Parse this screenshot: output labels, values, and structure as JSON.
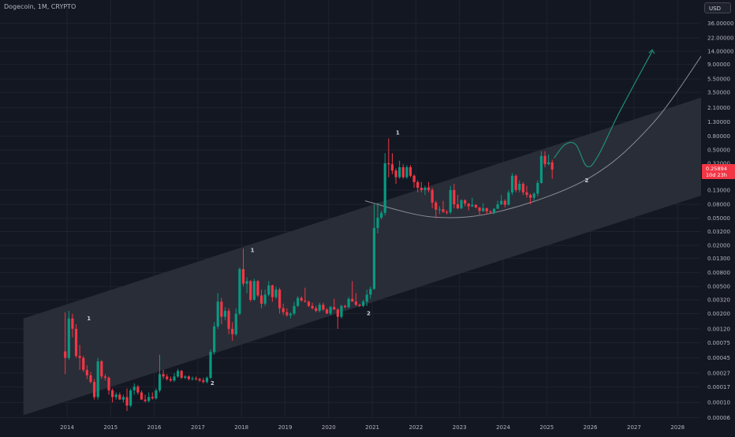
{
  "header": {
    "title": "Dogecoin, 1M, CRYPTO",
    "currency_button": "USD"
  },
  "colors": {
    "background": "#131722",
    "grid": "#1f2330",
    "channel_fill": "#2a2e39",
    "bull": "#089981",
    "bear": "#f23645",
    "curve": "#8a8d96",
    "projection": "#1f8f76",
    "price_tag": "#f23645",
    "text": "#b2b5be"
  },
  "price_tag": {
    "price": "0.25894",
    "countdown": "10d 23h"
  },
  "chart_data": {
    "type": "candlestick",
    "title": "Dogecoin, 1M, CRYPTO",
    "xlabel": "",
    "ylabel": "USD",
    "yscale": "log",
    "y_ticks": [
      "36.00000",
      "22.00000",
      "14.00000",
      "9.00000",
      "5.50000",
      "3.50000",
      "2.10000",
      "1.30000",
      "0.80000",
      "0.50000",
      "0.32000",
      "0.13000",
      "0.08000",
      "0.05000",
      "0.03200",
      "0.02000",
      "0.01300",
      "0.00800",
      "0.00500",
      "0.00320",
      "0.00200",
      "0.00120",
      "0.00075",
      "0.00045",
      "0.00027",
      "0.00017",
      "0.00010",
      "0.00006"
    ],
    "x_ticks": [
      "2014",
      "2015",
      "2016",
      "2017",
      "2018",
      "2019",
      "2020",
      "2021",
      "2022",
      "2023",
      "2024",
      "2025",
      "2026",
      "2027",
      "2028"
    ],
    "annotations": [
      {
        "label": "1",
        "x": "2014-07",
        "price": 0.0016
      },
      {
        "label": "2",
        "x": "2017-05",
        "price": 0.00018
      },
      {
        "label": "1",
        "x": "2018-04",
        "price": 0.016
      },
      {
        "label": "2",
        "x": "2020-12",
        "price": 0.0019
      },
      {
        "label": "1",
        "x": "2021-08",
        "price": 0.85
      },
      {
        "label": "2",
        "x": "2025-12",
        "price": 0.17
      }
    ],
    "channel": {
      "upper": [
        {
          "x": "2013-01",
          "price": 0.0017
        },
        {
          "x": "2028-08",
          "price": 3.0
        }
      ],
      "lower": [
        {
          "x": "2013-01",
          "price": 6.5e-05
        },
        {
          "x": "2028-08",
          "price": 0.11
        }
      ]
    },
    "candles": [
      {
        "t": "2013-12",
        "o": 0.00056,
        "h": 0.0021,
        "l": 0.00026,
        "c": 0.00045
      },
      {
        "t": "2014-01",
        "o": 0.00045,
        "h": 0.0022,
        "l": 0.00042,
        "c": 0.0017
      },
      {
        "t": "2014-02",
        "o": 0.0017,
        "h": 0.002,
        "l": 0.0009,
        "c": 0.0012
      },
      {
        "t": "2014-03",
        "o": 0.0012,
        "h": 0.0014,
        "l": 0.00045,
        "c": 0.00048
      },
      {
        "t": "2014-04",
        "o": 0.00048,
        "h": 0.0007,
        "l": 0.0003,
        "c": 0.00045
      },
      {
        "t": "2014-05",
        "o": 0.00045,
        "h": 0.00048,
        "l": 0.00028,
        "c": 0.0003
      },
      {
        "t": "2014-06",
        "o": 0.0003,
        "h": 0.00035,
        "l": 0.00022,
        "c": 0.00025
      },
      {
        "t": "2014-07",
        "o": 0.00025,
        "h": 0.00028,
        "l": 0.00019,
        "c": 0.0002
      },
      {
        "t": "2014-08",
        "o": 0.0002,
        "h": 0.00022,
        "l": 0.00011,
        "c": 0.00012
      },
      {
        "t": "2014-09",
        "o": 0.00012,
        "h": 0.00045,
        "l": 0.00011,
        "c": 0.0004
      },
      {
        "t": "2014-10",
        "o": 0.0004,
        "h": 0.00042,
        "l": 0.00022,
        "c": 0.00024
      },
      {
        "t": "2014-11",
        "o": 0.00024,
        "h": 0.00026,
        "l": 0.00021,
        "c": 0.00023
      },
      {
        "t": "2014-12",
        "o": 0.00023,
        "h": 0.00024,
        "l": 0.00013,
        "c": 0.00015
      },
      {
        "t": "2015-01",
        "o": 0.00015,
        "h": 0.00016,
        "l": 0.0001,
        "c": 0.00012
      },
      {
        "t": "2015-02",
        "o": 0.00012,
        "h": 0.00014,
        "l": 0.00011,
        "c": 0.00013
      },
      {
        "t": "2015-03",
        "o": 0.00013,
        "h": 0.00014,
        "l": 0.00011,
        "c": 0.00011
      },
      {
        "t": "2015-04",
        "o": 0.00011,
        "h": 0.00013,
        "l": 0.0001,
        "c": 0.00012
      },
      {
        "t": "2015-05",
        "o": 0.00012,
        "h": 0.00016,
        "l": 7.5e-05,
        "c": 9e-05
      },
      {
        "t": "2015-06",
        "o": 9e-05,
        "h": 0.00016,
        "l": 8.5e-05,
        "c": 0.00015
      },
      {
        "t": "2015-07",
        "o": 0.00015,
        "h": 0.00019,
        "l": 0.00013,
        "c": 0.00017
      },
      {
        "t": "2015-08",
        "o": 0.00017,
        "h": 0.00018,
        "l": 0.00013,
        "c": 0.00014
      },
      {
        "t": "2015-09",
        "o": 0.00014,
        "h": 0.00015,
        "l": 0.00011,
        "c": 0.00011
      },
      {
        "t": "2015-10",
        "o": 0.00011,
        "h": 0.00013,
        "l": 0.0001,
        "c": 0.000105
      },
      {
        "t": "2015-11",
        "o": 0.000105,
        "h": 0.00014,
        "l": 0.0001,
        "c": 0.00012
      },
      {
        "t": "2015-12",
        "o": 0.00012,
        "h": 0.00014,
        "l": 0.00011,
        "c": 0.000115
      },
      {
        "t": "2016-01",
        "o": 0.000115,
        "h": 0.00016,
        "l": 0.00011,
        "c": 0.00015
      },
      {
        "t": "2016-02",
        "o": 0.00015,
        "h": 0.0005,
        "l": 0.00014,
        "c": 0.00026
      },
      {
        "t": "2016-03",
        "o": 0.00026,
        "h": 0.0003,
        "l": 0.00022,
        "c": 0.00024
      },
      {
        "t": "2016-04",
        "o": 0.00024,
        "h": 0.00026,
        "l": 0.00021,
        "c": 0.00022
      },
      {
        "t": "2016-05",
        "o": 0.00022,
        "h": 0.00024,
        "l": 0.0002,
        "c": 0.00021
      },
      {
        "t": "2016-06",
        "o": 0.00021,
        "h": 0.00027,
        "l": 0.0002,
        "c": 0.00024
      },
      {
        "t": "2016-07",
        "o": 0.00024,
        "h": 0.00031,
        "l": 0.00023,
        "c": 0.00029
      },
      {
        "t": "2016-08",
        "o": 0.00029,
        "h": 0.0003,
        "l": 0.00022,
        "c": 0.00023
      },
      {
        "t": "2016-09",
        "o": 0.00023,
        "h": 0.00025,
        "l": 0.00022,
        "c": 0.00024
      },
      {
        "t": "2016-10",
        "o": 0.00024,
        "h": 0.00025,
        "l": 0.00021,
        "c": 0.00022
      },
      {
        "t": "2016-11",
        "o": 0.00022,
        "h": 0.00024,
        "l": 0.00021,
        "c": 0.000225
      },
      {
        "t": "2016-12",
        "o": 0.000225,
        "h": 0.00024,
        "l": 0.00021,
        "c": 0.00022
      },
      {
        "t": "2017-01",
        "o": 0.00022,
        "h": 0.00023,
        "l": 0.0002,
        "c": 0.00021
      },
      {
        "t": "2017-02",
        "o": 0.00021,
        "h": 0.00023,
        "l": 0.00019,
        "c": 0.0002
      },
      {
        "t": "2017-03",
        "o": 0.0002,
        "h": 0.00024,
        "l": 0.00019,
        "c": 0.00023
      },
      {
        "t": "2017-04",
        "o": 0.00023,
        "h": 0.0006,
        "l": 0.00022,
        "c": 0.00055
      },
      {
        "t": "2017-05",
        "o": 0.00055,
        "h": 0.0015,
        "l": 0.0005,
        "c": 0.0013
      },
      {
        "t": "2017-06",
        "o": 0.0013,
        "h": 0.004,
        "l": 0.0012,
        "c": 0.003
      },
      {
        "t": "2017-07",
        "o": 0.003,
        "h": 0.0034,
        "l": 0.0014,
        "c": 0.0018
      },
      {
        "t": "2017-08",
        "o": 0.0018,
        "h": 0.0025,
        "l": 0.0016,
        "c": 0.0022
      },
      {
        "t": "2017-09",
        "o": 0.0022,
        "h": 0.0024,
        "l": 0.001,
        "c": 0.0012
      },
      {
        "t": "2017-10",
        "o": 0.0012,
        "h": 0.0015,
        "l": 0.0008,
        "c": 0.001
      },
      {
        "t": "2017-11",
        "o": 0.001,
        "h": 0.0024,
        "l": 0.00095,
        "c": 0.002
      },
      {
        "t": "2017-12",
        "o": 0.002,
        "h": 0.0095,
        "l": 0.0019,
        "c": 0.009
      },
      {
        "t": "2018-01",
        "o": 0.009,
        "h": 0.018,
        "l": 0.005,
        "c": 0.0055
      },
      {
        "t": "2018-02",
        "o": 0.0055,
        "h": 0.0068,
        "l": 0.004,
        "c": 0.006
      },
      {
        "t": "2018-03",
        "o": 0.006,
        "h": 0.0062,
        "l": 0.003,
        "c": 0.0032
      },
      {
        "t": "2018-04",
        "o": 0.0032,
        "h": 0.0065,
        "l": 0.0031,
        "c": 0.006
      },
      {
        "t": "2018-05",
        "o": 0.006,
        "h": 0.0062,
        "l": 0.0035,
        "c": 0.0037
      },
      {
        "t": "2018-06",
        "o": 0.0037,
        "h": 0.0045,
        "l": 0.0024,
        "c": 0.0028
      },
      {
        "t": "2018-07",
        "o": 0.0028,
        "h": 0.0045,
        "l": 0.0026,
        "c": 0.0038
      },
      {
        "t": "2018-08",
        "o": 0.0038,
        "h": 0.006,
        "l": 0.0036,
        "c": 0.0052
      },
      {
        "t": "2018-09",
        "o": 0.0052,
        "h": 0.0053,
        "l": 0.003,
        "c": 0.0035
      },
      {
        "t": "2018-10",
        "o": 0.0035,
        "h": 0.005,
        "l": 0.0033,
        "c": 0.0045
      },
      {
        "t": "2018-11",
        "o": 0.0045,
        "h": 0.0048,
        "l": 0.002,
        "c": 0.0024
      },
      {
        "t": "2018-12",
        "o": 0.0024,
        "h": 0.0028,
        "l": 0.0019,
        "c": 0.0021
      },
      {
        "t": "2019-01",
        "o": 0.0021,
        "h": 0.0024,
        "l": 0.0018,
        "c": 0.0019
      },
      {
        "t": "2019-02",
        "o": 0.0019,
        "h": 0.0021,
        "l": 0.0017,
        "c": 0.002
      },
      {
        "t": "2019-03",
        "o": 0.002,
        "h": 0.003,
        "l": 0.0019,
        "c": 0.0026
      },
      {
        "t": "2019-04",
        "o": 0.0026,
        "h": 0.0036,
        "l": 0.0025,
        "c": 0.0034
      },
      {
        "t": "2019-05",
        "o": 0.0034,
        "h": 0.0036,
        "l": 0.003,
        "c": 0.0031
      },
      {
        "t": "2019-06",
        "o": 0.0031,
        "h": 0.0048,
        "l": 0.0029,
        "c": 0.003
      },
      {
        "t": "2019-07",
        "o": 0.003,
        "h": 0.0031,
        "l": 0.0025,
        "c": 0.0026
      },
      {
        "t": "2019-08",
        "o": 0.0026,
        "h": 0.0029,
        "l": 0.0023,
        "c": 0.0024
      },
      {
        "t": "2019-09",
        "o": 0.0024,
        "h": 0.0026,
        "l": 0.0021,
        "c": 0.0022
      },
      {
        "t": "2019-10",
        "o": 0.0022,
        "h": 0.0029,
        "l": 0.0021,
        "c": 0.0027
      },
      {
        "t": "2019-11",
        "o": 0.0027,
        "h": 0.0029,
        "l": 0.0022,
        "c": 0.0023
      },
      {
        "t": "2019-12",
        "o": 0.0023,
        "h": 0.0024,
        "l": 0.002,
        "c": 0.002
      },
      {
        "t": "2020-01",
        "o": 0.002,
        "h": 0.0026,
        "l": 0.0019,
        "c": 0.0025
      },
      {
        "t": "2020-02",
        "o": 0.0025,
        "h": 0.0033,
        "l": 0.0024,
        "c": 0.0023
      },
      {
        "t": "2020-03",
        "o": 0.0023,
        "h": 0.0024,
        "l": 0.0012,
        "c": 0.0018
      },
      {
        "t": "2020-04",
        "o": 0.0018,
        "h": 0.0027,
        "l": 0.0017,
        "c": 0.0026
      },
      {
        "t": "2020-05",
        "o": 0.0026,
        "h": 0.0027,
        "l": 0.0024,
        "c": 0.0025
      },
      {
        "t": "2020-06",
        "o": 0.0025,
        "h": 0.0035,
        "l": 0.0024,
        "c": 0.0033
      },
      {
        "t": "2020-07",
        "o": 0.0033,
        "h": 0.006,
        "l": 0.0031,
        "c": 0.003
      },
      {
        "t": "2020-08",
        "o": 0.003,
        "h": 0.004,
        "l": 0.0026,
        "c": 0.0027
      },
      {
        "t": "2020-09",
        "o": 0.0027,
        "h": 0.0028,
        "l": 0.0025,
        "c": 0.0026
      },
      {
        "t": "2020-10",
        "o": 0.0026,
        "h": 0.0032,
        "l": 0.0025,
        "c": 0.003
      },
      {
        "t": "2020-11",
        "o": 0.003,
        "h": 0.0045,
        "l": 0.0026,
        "c": 0.0038
      },
      {
        "t": "2020-12",
        "o": 0.0038,
        "h": 0.005,
        "l": 0.0033,
        "c": 0.0046
      },
      {
        "t": "2021-01",
        "o": 0.0046,
        "h": 0.08,
        "l": 0.0045,
        "c": 0.036
      },
      {
        "t": "2021-02",
        "o": 0.036,
        "h": 0.085,
        "l": 0.03,
        "c": 0.051
      },
      {
        "t": "2021-03",
        "o": 0.051,
        "h": 0.065,
        "l": 0.048,
        "c": 0.06
      },
      {
        "t": "2021-04",
        "o": 0.06,
        "h": 0.45,
        "l": 0.055,
        "c": 0.32
      },
      {
        "t": "2021-05",
        "o": 0.32,
        "h": 0.74,
        "l": 0.2,
        "c": 0.31
      },
      {
        "t": "2021-06",
        "o": 0.31,
        "h": 0.45,
        "l": 0.22,
        "c": 0.25
      },
      {
        "t": "2021-07",
        "o": 0.25,
        "h": 0.27,
        "l": 0.16,
        "c": 0.2
      },
      {
        "t": "2021-08",
        "o": 0.2,
        "h": 0.35,
        "l": 0.19,
        "c": 0.28
      },
      {
        "t": "2021-09",
        "o": 0.28,
        "h": 0.31,
        "l": 0.19,
        "c": 0.2
      },
      {
        "t": "2021-10",
        "o": 0.2,
        "h": 0.3,
        "l": 0.19,
        "c": 0.28
      },
      {
        "t": "2021-11",
        "o": 0.28,
        "h": 0.3,
        "l": 0.2,
        "c": 0.21
      },
      {
        "t": "2021-12",
        "o": 0.21,
        "h": 0.22,
        "l": 0.14,
        "c": 0.17
      },
      {
        "t": "2022-01",
        "o": 0.17,
        "h": 0.18,
        "l": 0.12,
        "c": 0.14
      },
      {
        "t": "2022-02",
        "o": 0.14,
        "h": 0.17,
        "l": 0.12,
        "c": 0.13
      },
      {
        "t": "2022-03",
        "o": 0.13,
        "h": 0.15,
        "l": 0.11,
        "c": 0.14
      },
      {
        "t": "2022-04",
        "o": 0.14,
        "h": 0.17,
        "l": 0.12,
        "c": 0.13
      },
      {
        "t": "2022-05",
        "o": 0.13,
        "h": 0.14,
        "l": 0.07,
        "c": 0.085
      },
      {
        "t": "2022-06",
        "o": 0.085,
        "h": 0.09,
        "l": 0.05,
        "c": 0.067
      },
      {
        "t": "2022-07",
        "o": 0.067,
        "h": 0.075,
        "l": 0.058,
        "c": 0.068
      },
      {
        "t": "2022-08",
        "o": 0.068,
        "h": 0.09,
        "l": 0.06,
        "c": 0.062
      },
      {
        "t": "2022-09",
        "o": 0.062,
        "h": 0.066,
        "l": 0.057,
        "c": 0.061
      },
      {
        "t": "2022-10",
        "o": 0.061,
        "h": 0.15,
        "l": 0.058,
        "c": 0.13
      },
      {
        "t": "2022-11",
        "o": 0.13,
        "h": 0.16,
        "l": 0.07,
        "c": 0.08
      },
      {
        "t": "2022-12",
        "o": 0.08,
        "h": 0.11,
        "l": 0.068,
        "c": 0.07
      },
      {
        "t": "2023-01",
        "o": 0.07,
        "h": 0.095,
        "l": 0.068,
        "c": 0.092
      },
      {
        "t": "2023-02",
        "o": 0.092,
        "h": 0.095,
        "l": 0.075,
        "c": 0.082
      },
      {
        "t": "2023-03",
        "o": 0.082,
        "h": 0.083,
        "l": 0.065,
        "c": 0.075
      },
      {
        "t": "2023-04",
        "o": 0.075,
        "h": 0.1,
        "l": 0.073,
        "c": 0.079
      },
      {
        "t": "2023-05",
        "o": 0.079,
        "h": 0.08,
        "l": 0.07,
        "c": 0.072
      },
      {
        "t": "2023-06",
        "o": 0.072,
        "h": 0.073,
        "l": 0.055,
        "c": 0.064
      },
      {
        "t": "2023-07",
        "o": 0.064,
        "h": 0.083,
        "l": 0.062,
        "c": 0.07
      },
      {
        "t": "2023-08",
        "o": 0.07,
        "h": 0.072,
        "l": 0.057,
        "c": 0.063
      },
      {
        "t": "2023-09",
        "o": 0.063,
        "h": 0.066,
        "l": 0.059,
        "c": 0.061
      },
      {
        "t": "2023-10",
        "o": 0.061,
        "h": 0.07,
        "l": 0.057,
        "c": 0.069
      },
      {
        "t": "2023-11",
        "o": 0.069,
        "h": 0.09,
        "l": 0.068,
        "c": 0.08
      },
      {
        "t": "2023-12",
        "o": 0.08,
        "h": 0.11,
        "l": 0.078,
        "c": 0.09
      },
      {
        "t": "2024-01",
        "o": 0.09,
        "h": 0.095,
        "l": 0.072,
        "c": 0.079
      },
      {
        "t": "2024-02",
        "o": 0.079,
        "h": 0.13,
        "l": 0.077,
        "c": 0.12
      },
      {
        "t": "2024-03",
        "o": 0.12,
        "h": 0.23,
        "l": 0.11,
        "c": 0.21
      },
      {
        "t": "2024-04",
        "o": 0.21,
        "h": 0.22,
        "l": 0.12,
        "c": 0.13
      },
      {
        "t": "2024-05",
        "o": 0.13,
        "h": 0.18,
        "l": 0.12,
        "c": 0.16
      },
      {
        "t": "2024-06",
        "o": 0.16,
        "h": 0.17,
        "l": 0.11,
        "c": 0.12
      },
      {
        "t": "2024-07",
        "o": 0.12,
        "h": 0.15,
        "l": 0.1,
        "c": 0.11
      },
      {
        "t": "2024-08",
        "o": 0.11,
        "h": 0.115,
        "l": 0.08,
        "c": 0.1
      },
      {
        "t": "2024-09",
        "o": 0.1,
        "h": 0.12,
        "l": 0.09,
        "c": 0.115
      },
      {
        "t": "2024-10",
        "o": 0.115,
        "h": 0.18,
        "l": 0.105,
        "c": 0.165
      },
      {
        "t": "2024-11",
        "o": 0.165,
        "h": 0.48,
        "l": 0.16,
        "c": 0.41
      },
      {
        "t": "2024-12",
        "o": 0.41,
        "h": 0.48,
        "l": 0.28,
        "c": 0.31
      },
      {
        "t": "2025-01",
        "o": 0.31,
        "h": 0.43,
        "l": 0.3,
        "c": 0.33
      },
      {
        "t": "2025-02",
        "o": 0.33,
        "h": 0.36,
        "l": 0.19,
        "c": 0.25894
      }
    ],
    "projection_path": [
      {
        "x": "2025-03",
        "price": 0.38
      },
      {
        "x": "2025-06",
        "price": 0.6
      },
      {
        "x": "2025-09",
        "price": 0.6
      },
      {
        "x": "2025-12",
        "price": 0.29
      },
      {
        "x": "2026-03",
        "price": 0.4
      },
      {
        "x": "2026-09",
        "price": 1.8
      },
      {
        "x": "2027-06",
        "price": 14.0
      }
    ],
    "support_curve": [
      {
        "x": "2020-11",
        "price": 0.09
      },
      {
        "x": "2022-06",
        "price": 0.052
      },
      {
        "x": "2024-01",
        "price": 0.065
      },
      {
        "x": "2026-01",
        "price": 0.2
      },
      {
        "x": "2027-06",
        "price": 1.2
      },
      {
        "x": "2028-08",
        "price": 13.0
      }
    ]
  }
}
